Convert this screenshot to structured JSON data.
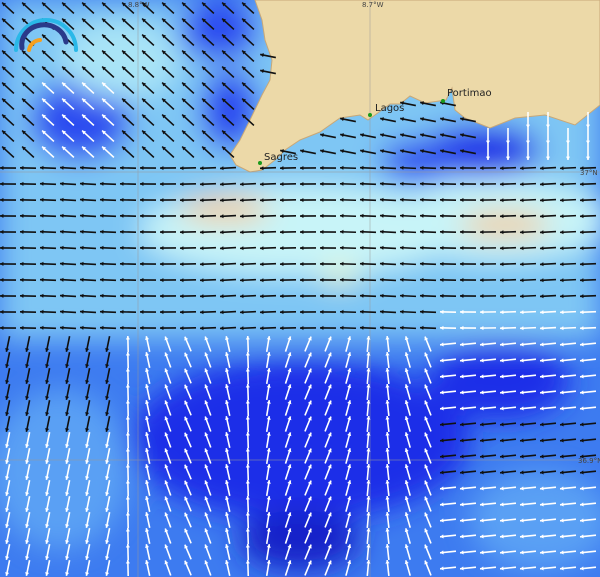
{
  "map": {
    "places": [
      {
        "name": "Sagres"
      },
      {
        "name": "Lagos"
      },
      {
        "name": "Portimao"
      }
    ],
    "grid_labels": {
      "lon_west": "8.8°W",
      "lon_east": "8.7°W",
      "lat_north": "37°N",
      "lat_south": "36.9°N"
    },
    "colors": {
      "land": "#ecd9a8",
      "deep_blue": "#1a2ee8",
      "mid_blue": "#3d7bf0",
      "light_blue": "#8fd0f5",
      "pale_cyan": "#c8f4f8",
      "high_orange": "#f5c890",
      "arrow_dark": "#111111",
      "arrow_light": "#ffffff"
    },
    "logo": "wave-gauge-logo"
  }
}
